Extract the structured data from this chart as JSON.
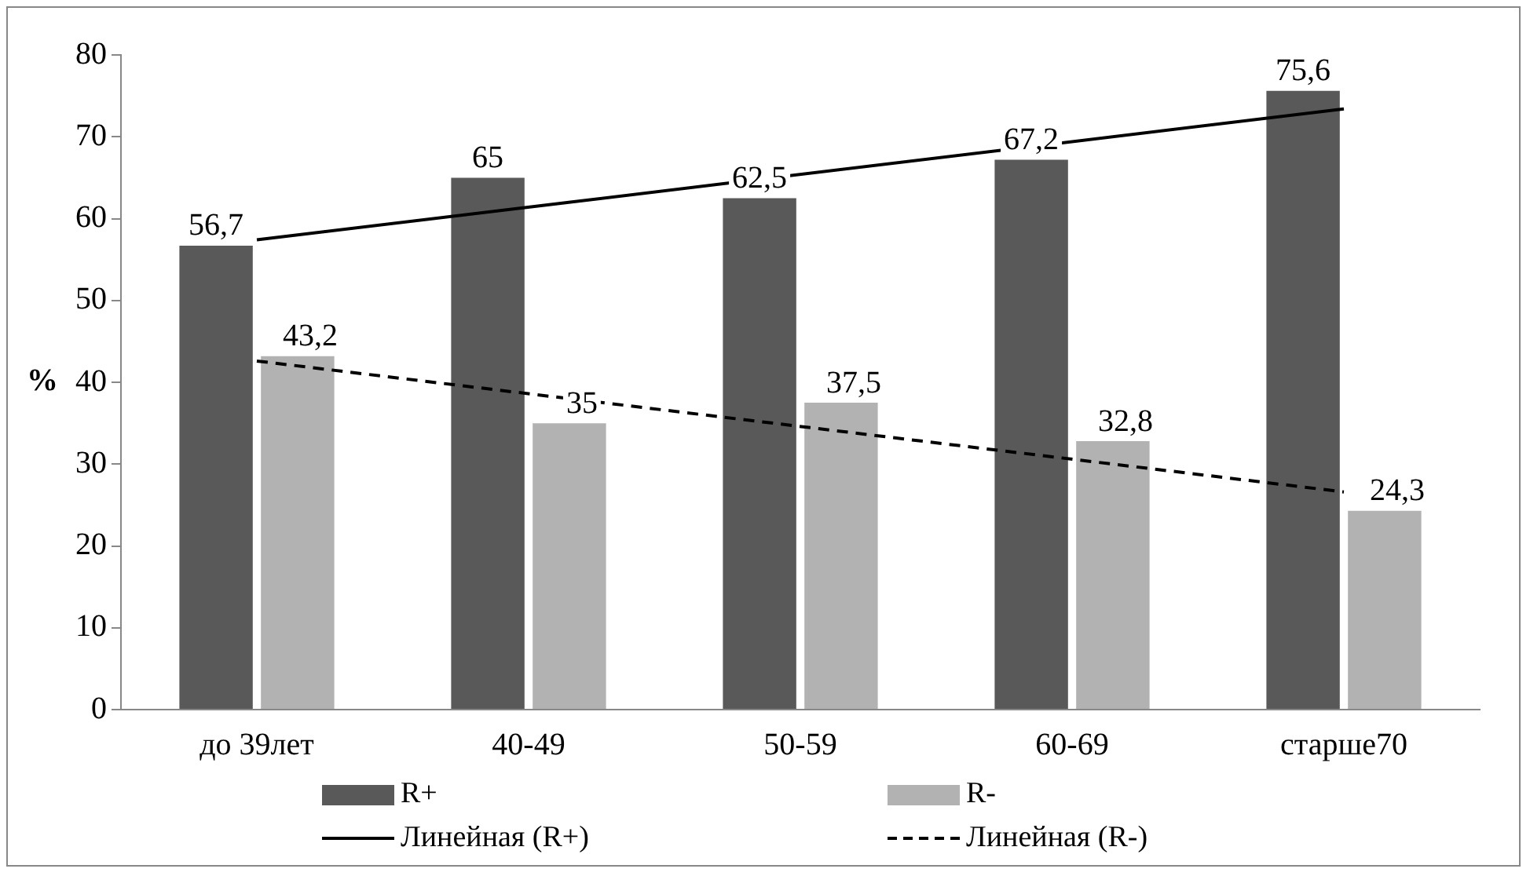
{
  "chart_data": {
    "type": "bar",
    "ylabel": "%",
    "categories": [
      "до 39лет",
      "40-49",
      "50-59",
      "60-69",
      "старше70"
    ],
    "series": [
      {
        "name": "R+",
        "color": "#595959",
        "values": [
          56.7,
          65,
          62.5,
          67.2,
          75.6
        ],
        "value_labels": [
          "56,7",
          "65",
          "62,5",
          "67,2",
          "75,6"
        ]
      },
      {
        "name": "R-",
        "color": "#b2b2b2",
        "values": [
          43.2,
          35,
          37.5,
          32.8,
          24.3
        ],
        "value_labels": [
          "43,2",
          "35",
          "37,5",
          "32,8",
          "24,3"
        ]
      },
      {
        "name": "Линейная (R+)",
        "type": "line",
        "color": "#000000",
        "line_style": "solid",
        "x": [
          "до 39лет",
          "старше70"
        ],
        "values": [
          57.4,
          73.4
        ]
      },
      {
        "name": "Линейная (R-)",
        "type": "line",
        "color": "#000000",
        "line_style": "dashed",
        "x": [
          "до 39лет",
          "старше70"
        ],
        "values": [
          42.6,
          26.6
        ]
      }
    ],
    "ylim": [
      0,
      80
    ],
    "yticks": [
      0,
      10,
      20,
      30,
      40,
      50,
      60,
      70,
      80
    ],
    "grid": false,
    "legend": "bottom",
    "marker": "none"
  }
}
